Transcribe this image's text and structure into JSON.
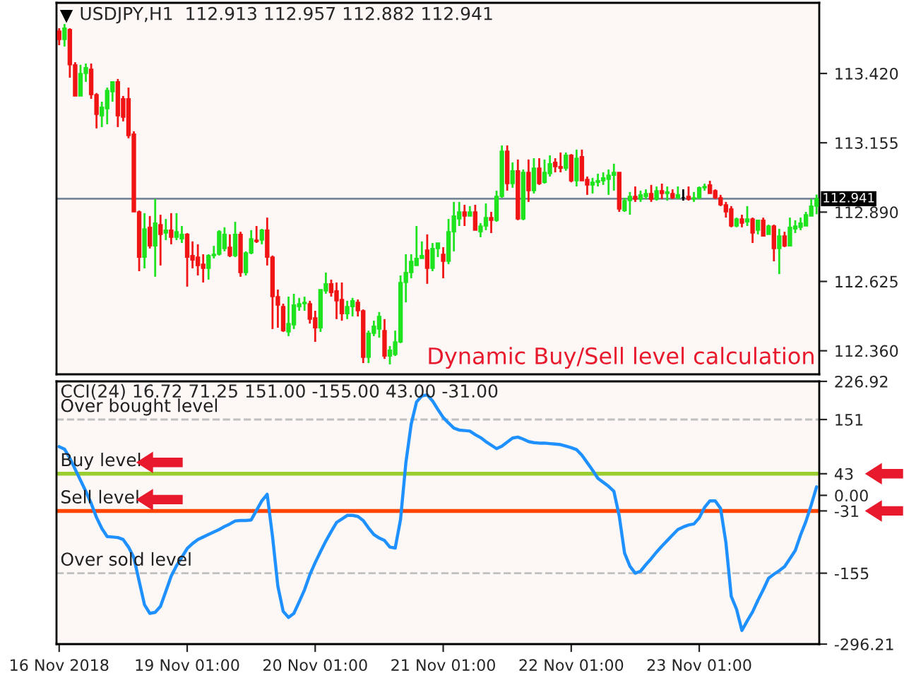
{
  "chart_data": [
    {
      "type": "candlestick",
      "title": "USDJPY,H1  112.913 112.957 112.882 112.941",
      "categories": [
        null,
        null,
        null,
        null,
        null,
        null,
        null,
        null,
        null,
        null,
        null,
        null,
        null,
        null,
        null,
        null,
        null,
        null,
        null,
        null,
        null,
        null,
        null,
        null,
        null,
        null,
        null,
        null,
        null,
        null,
        null,
        null,
        null,
        null,
        null,
        null,
        null,
        null,
        null,
        null,
        null,
        null,
        null,
        null,
        null,
        null,
        null,
        null,
        null,
        null,
        null,
        null,
        null,
        null,
        null,
        null,
        null,
        null,
        null,
        null,
        null,
        null,
        null,
        null,
        null,
        null,
        null,
        null,
        null,
        null,
        null,
        null,
        null,
        null,
        null,
        null,
        null,
        null,
        null,
        null,
        null,
        null,
        null,
        null,
        null,
        null,
        null,
        null,
        null,
        null,
        null,
        null,
        null,
        null,
        null,
        null,
        null,
        null,
        null,
        null,
        null,
        null,
        null,
        null,
        null,
        null,
        null,
        null,
        null,
        null,
        null,
        null,
        null,
        null,
        null,
        null,
        null,
        null,
        null,
        null,
        null,
        null,
        null,
        null,
        null,
        null,
        null,
        null,
        null,
        null,
        null,
        null,
        null,
        null,
        null,
        null,
        null,
        null,
        null,
        null,
        null,
        null,
        null
      ],
      "ohlc": [
        [
          113.582,
          113.593,
          113.528,
          113.55
        ],
        [
          113.55,
          113.609,
          113.523,
          113.593
        ],
        [
          113.588,
          113.593,
          113.404,
          113.453
        ],
        [
          113.453,
          113.463,
          113.334,
          113.334
        ],
        [
          113.334,
          113.453,
          113.334,
          113.42
        ],
        [
          113.42,
          113.458,
          113.388,
          113.442
        ],
        [
          113.436,
          113.458,
          113.323,
          113.339
        ],
        [
          113.339,
          113.345,
          113.21,
          113.264
        ],
        [
          113.258,
          113.312,
          113.215,
          113.291
        ],
        [
          113.285,
          113.366,
          113.226,
          113.355
        ],
        [
          113.35,
          113.388,
          113.312,
          113.388
        ],
        [
          113.388,
          113.399,
          113.215,
          113.258
        ],
        [
          113.323,
          113.334,
          113.237,
          113.253
        ],
        [
          113.323,
          113.366,
          113.172,
          113.183
        ],
        [
          113.188,
          113.199,
          112.891,
          112.891
        ],
        [
          112.891,
          112.896,
          112.664,
          112.718
        ],
        [
          112.718,
          112.886,
          112.675,
          112.826
        ],
        [
          112.832,
          112.875,
          112.751,
          112.761
        ],
        [
          112.761,
          112.94,
          112.643,
          112.848
        ],
        [
          112.842,
          112.88,
          112.686,
          112.805
        ],
        [
          112.81,
          112.864,
          112.783,
          112.821
        ],
        [
          112.821,
          112.886,
          112.767,
          112.794
        ],
        [
          112.794,
          112.886,
          112.783,
          112.815
        ],
        [
          112.788,
          112.837,
          112.772,
          112.805
        ],
        [
          112.805,
          112.81,
          112.605,
          112.718
        ],
        [
          112.724,
          112.778,
          112.675,
          112.707
        ],
        [
          112.718,
          112.767,
          112.648,
          112.686
        ],
        [
          112.691,
          112.729,
          112.621,
          112.675
        ],
        [
          112.675,
          112.729,
          112.632,
          112.724
        ],
        [
          112.724,
          112.761,
          112.713,
          112.729
        ],
        [
          112.729,
          112.821,
          112.724,
          112.815
        ],
        [
          112.751,
          112.832,
          112.74,
          112.805
        ],
        [
          112.756,
          112.805,
          112.718,
          112.724
        ],
        [
          112.724,
          112.853,
          112.718,
          112.805
        ],
        [
          112.805,
          112.815,
          112.643,
          112.659
        ],
        [
          112.659,
          112.74,
          112.648,
          112.734
        ],
        [
          112.734,
          112.821,
          112.729,
          112.788
        ],
        [
          112.783,
          112.837,
          112.772,
          112.778
        ],
        [
          112.783,
          112.826,
          112.767,
          112.821
        ],
        [
          112.821,
          112.869,
          112.686,
          112.718
        ],
        [
          112.718,
          112.724,
          112.443,
          112.567
        ],
        [
          112.567,
          112.594,
          112.448,
          112.535
        ],
        [
          112.529,
          112.54,
          112.432,
          112.437
        ],
        [
          112.432,
          112.567,
          112.416,
          112.464
        ],
        [
          112.459,
          112.578,
          112.443,
          112.535
        ],
        [
          112.529,
          112.562,
          112.513,
          112.54
        ],
        [
          112.54,
          112.567,
          112.513,
          112.545
        ],
        [
          112.54,
          112.551,
          112.464,
          112.481
        ],
        [
          112.486,
          112.513,
          112.394,
          112.448
        ],
        [
          112.448,
          112.594,
          112.432,
          112.594
        ],
        [
          112.589,
          112.659,
          112.578,
          112.616
        ],
        [
          112.616,
          112.632,
          112.567,
          112.583
        ],
        [
          112.589,
          112.621,
          112.481,
          112.551
        ],
        [
          112.556,
          112.621,
          112.475,
          112.502
        ],
        [
          112.502,
          112.551,
          112.481,
          112.529
        ],
        [
          112.529,
          112.562,
          112.491,
          112.551
        ],
        [
          112.545,
          112.556,
          112.491,
          112.513
        ],
        [
          112.513,
          112.518,
          112.313,
          112.335
        ],
        [
          112.335,
          112.437,
          112.313,
          112.427
        ],
        [
          112.427,
          112.475,
          112.416,
          112.454
        ],
        [
          112.443,
          112.508,
          112.41,
          112.491
        ],
        [
          112.437,
          112.481,
          112.329,
          112.34
        ],
        [
          112.34,
          112.378,
          112.308,
          112.362
        ],
        [
          112.346,
          112.437,
          112.34,
          112.394
        ],
        [
          112.394,
          112.648,
          112.389,
          112.621
        ],
        [
          112.621,
          112.729,
          112.545,
          112.659
        ],
        [
          112.659,
          112.729,
          112.637,
          112.702
        ],
        [
          112.686,
          112.837,
          112.686,
          112.713
        ],
        [
          112.713,
          112.778,
          112.713,
          112.724
        ],
        [
          112.745,
          112.805,
          112.616,
          112.675
        ],
        [
          112.675,
          112.772,
          112.664,
          112.751
        ],
        [
          112.751,
          112.772,
          112.718,
          112.772
        ],
        [
          112.729,
          112.756,
          112.637,
          112.702
        ],
        [
          112.702,
          112.864,
          112.691,
          112.815
        ],
        [
          112.815,
          112.929,
          112.74,
          112.875
        ],
        [
          112.864,
          112.929,
          112.837,
          112.891
        ],
        [
          112.891,
          112.918,
          112.837,
          112.875
        ],
        [
          112.875,
          112.913,
          112.875,
          112.891
        ],
        [
          112.891,
          112.918,
          112.821,
          112.821
        ],
        [
          112.815,
          112.848,
          112.794,
          112.837
        ],
        [
          112.837,
          112.923,
          112.821,
          112.869
        ],
        [
          112.869,
          112.891,
          112.81,
          112.859
        ],
        [
          112.859,
          112.972,
          112.853,
          112.95
        ],
        [
          112.95,
          113.145,
          112.945,
          113.123
        ],
        [
          113.123,
          113.145,
          112.972,
          112.999
        ],
        [
          112.999,
          113.08,
          112.983,
          113.048
        ],
        [
          113.048,
          113.091,
          112.859,
          112.864
        ],
        [
          112.864,
          113.053,
          112.859,
          113.042
        ],
        [
          113.042,
          113.091,
          112.929,
          112.972
        ],
        [
          112.972,
          113.096,
          112.961,
          113.058
        ],
        [
          113.058,
          113.096,
          112.994,
          112.999
        ],
        [
          113.004,
          113.091,
          112.999,
          113.042
        ],
        [
          113.037,
          113.107,
          113.026,
          113.075
        ],
        [
          113.08,
          113.096,
          113.042,
          113.064
        ],
        [
          113.064,
          113.118,
          113.042,
          113.058
        ],
        [
          113.058,
          113.118,
          113.048,
          113.107
        ],
        [
          113.107,
          113.112,
          113.004,
          113.01
        ],
        [
          113.01,
          113.129,
          112.988,
          113.096
        ],
        [
          113.102,
          113.129,
          113.01,
          113.01
        ],
        [
          113.015,
          113.026,
          112.956,
          112.994
        ],
        [
          112.994,
          113.021,
          112.961,
          113.004
        ],
        [
          113.004,
          113.037,
          112.988,
          113.01
        ],
        [
          113.01,
          113.042,
          112.994,
          113.021
        ],
        [
          113.015,
          113.053,
          112.956,
          113.031
        ],
        [
          113.031,
          113.075,
          112.972,
          113.042
        ],
        [
          113.042,
          113.042,
          112.891,
          112.902
        ],
        [
          112.896,
          112.945,
          112.891,
          112.934
        ],
        [
          112.934,
          112.967,
          112.88,
          112.95
        ],
        [
          112.95,
          112.988,
          112.929,
          112.94
        ],
        [
          112.94,
          112.972,
          112.929,
          112.956
        ],
        [
          112.95,
          112.977,
          112.94,
          112.961
        ],
        [
          112.961,
          112.994,
          112.929,
          112.94
        ],
        [
          112.94,
          112.988,
          112.934,
          112.972
        ],
        [
          112.972,
          112.999,
          112.94,
          112.961
        ],
        [
          112.961,
          112.988,
          112.934,
          112.967
        ],
        [
          112.961,
          112.977,
          112.94,
          112.945
        ],
        [
          112.945,
          112.988,
          112.94,
          112.956
        ],
        [
          112.945,
          112.977,
          112.934,
          112.945
        ],
        [
          112.95,
          112.988,
          112.934,
          112.94
        ],
        [
          112.94,
          112.967,
          112.929,
          112.945
        ],
        [
          112.945,
          112.988,
          112.94,
          112.983
        ],
        [
          112.983,
          112.999,
          112.972,
          112.988
        ],
        [
          112.994,
          113.01,
          112.961,
          112.961
        ],
        [
          112.972,
          112.977,
          112.94,
          112.945
        ],
        [
          112.945,
          112.956,
          112.913,
          112.918
        ],
        [
          112.918,
          112.929,
          112.869,
          112.891
        ],
        [
          112.902,
          112.913,
          112.832,
          112.837
        ],
        [
          112.837,
          112.869,
          112.832,
          112.864
        ],
        [
          112.864,
          112.88,
          112.832,
          112.848
        ],
        [
          112.853,
          112.913,
          112.837,
          112.864
        ],
        [
          112.864,
          112.869,
          112.772,
          112.81
        ],
        [
          112.821,
          112.859,
          112.805,
          112.859
        ],
        [
          112.859,
          112.869,
          112.799,
          112.799
        ],
        [
          112.805,
          112.842,
          112.805,
          112.837
        ],
        [
          112.837,
          112.842,
          112.702,
          112.751
        ],
        [
          112.751,
          112.826,
          112.653,
          112.799
        ],
        [
          112.799,
          112.815,
          112.756,
          112.761
        ],
        [
          112.761,
          112.869,
          112.761,
          112.832
        ],
        [
          112.826,
          112.859,
          112.81,
          112.837
        ],
        [
          112.832,
          112.869,
          112.821,
          112.848
        ],
        [
          112.837,
          112.891,
          112.837,
          112.88
        ],
        [
          112.875,
          112.94,
          112.875,
          112.913
        ],
        [
          112.913,
          112.957,
          112.882,
          112.941
        ]
      ],
      "colors": [
        "#f01414",
        "#1ee31e",
        "#f01414",
        "#f01414",
        "#1ee31e",
        "#1ee31e",
        "#f01414",
        "#f01414",
        "#1ee31e",
        "#1ee31e",
        "#1ee31e",
        "#f01414",
        "#f01414",
        "#f01414",
        "#f01414",
        "#f01414",
        "#1ee31e",
        "#f01414",
        "#1ee31e",
        "#f01414",
        "#1ee31e",
        "#f01414",
        "#1ee31e",
        "#1ee31e",
        "#f01414",
        "#f01414",
        "#f01414",
        "#f01414",
        "#1ee31e",
        "#1ee31e",
        "#1ee31e",
        "#1ee31e",
        "#f01414",
        "#1ee31e",
        "#f01414",
        "#1ee31e",
        "#1ee31e",
        "#f01414",
        "#1ee31e",
        "#f01414",
        "#f01414",
        "#f01414",
        "#f01414",
        "#1ee31e",
        "#1ee31e",
        "#1ee31e",
        "#1ee31e",
        "#f01414",
        "#f01414",
        "#1ee31e",
        "#1ee31e",
        "#f01414",
        "#f01414",
        "#f01414",
        "#1ee31e",
        "#1ee31e",
        "#f01414",
        "#f01414",
        "#1ee31e",
        "#1ee31e",
        "#1ee31e",
        "#f01414",
        "#1ee31e",
        "#1ee31e",
        "#1ee31e",
        "#1ee31e",
        "#1ee31e",
        "#1ee31e",
        "#1ee31e",
        "#f01414",
        "#1ee31e",
        "#1ee31e",
        "#f01414",
        "#1ee31e",
        "#1ee31e",
        "#1ee31e",
        "#f01414",
        "#1ee31e",
        "#f01414",
        "#1ee31e",
        "#1ee31e",
        "#f01414",
        "#1ee31e",
        "#1ee31e",
        "#f01414",
        "#1ee31e",
        "#f01414",
        "#1ee31e",
        "#f01414",
        "#1ee31e",
        "#f01414",
        "#1ee31e",
        "#1ee31e",
        "#f01414",
        "#f01414",
        "#1ee31e",
        "#f01414",
        "#1ee31e",
        "#f01414",
        "#f01414",
        "#1ee31e",
        "#1ee31e",
        "#1ee31e",
        "#1ee31e",
        "#1ee31e",
        "#f01414",
        "#1ee31e",
        "#1ee31e",
        "#f01414",
        "#1ee31e",
        "#1ee31e",
        "#f01414",
        "#1ee31e",
        "#f01414",
        "#1ee31e",
        "#f01414",
        "#1ee31e",
        "#000000",
        "#f01414",
        "#1ee31e",
        "#1ee31e",
        "#1ee31e",
        "#f01414",
        "#f01414",
        "#f01414",
        "#f01414",
        "#f01414",
        "#1ee31e",
        "#f01414",
        "#1ee31e",
        "#f01414",
        "#1ee31e",
        "#f01414",
        "#1ee31e",
        "#f01414",
        "#1ee31e",
        "#f01414",
        "#1ee31e",
        "#1ee31e",
        "#1ee31e",
        "#1ee31e",
        "#1ee31e",
        "#1ee31e"
      ],
      "ylim": [
        112.27,
        113.69
      ],
      "yticks": [
        {
          "value": 113.42,
          "label": "113.420"
        },
        113.155,
        {
          "value": 112.89,
          "label": "112.890"
        },
        112.625,
        {
          "value": 112.36,
          "label": "112.360"
        }
      ],
      "tick_labels": "y",
      "ref_lines": [
        {
          "axis": "y",
          "value": 112.941,
          "label": "112.941",
          "color": "#778899",
          "line_style": "solid"
        }
      ],
      "annotations": [
        "Dynamic Buy/Sell level calculation"
      ]
    },
    {
      "type": "line",
      "title": "CCI(24) 16.72 71.25 151.00 -155.00 43.00 -31.00",
      "categories": [
        "16 Nov 2018",
        null,
        null,
        null,
        null,
        null,
        null,
        null,
        null,
        null,
        null,
        null,
        null,
        null,
        null,
        null,
        null,
        null,
        null,
        null,
        null,
        null,
        null,
        null,
        "19 Nov 01:00",
        null,
        null,
        null,
        null,
        null,
        null,
        null,
        null,
        null,
        null,
        null,
        null,
        null,
        null,
        null,
        null,
        null,
        null,
        null,
        null,
        null,
        null,
        null,
        "20 Nov 01:00",
        null,
        null,
        null,
        null,
        null,
        null,
        null,
        null,
        null,
        null,
        null,
        null,
        null,
        null,
        null,
        null,
        null,
        null,
        null,
        null,
        null,
        null,
        null,
        "21 Nov 01:00",
        null,
        null,
        null,
        null,
        null,
        null,
        null,
        null,
        null,
        null,
        null,
        null,
        null,
        null,
        null,
        null,
        null,
        null,
        null,
        null,
        null,
        null,
        null,
        "22 Nov 01:00",
        null,
        null,
        null,
        null,
        null,
        null,
        null,
        null,
        null,
        null,
        null,
        null,
        null,
        null,
        null,
        null,
        null,
        null,
        null,
        null,
        null,
        null,
        null,
        "23 Nov 01:00",
        null,
        null,
        null,
        null,
        null,
        null,
        null,
        null,
        null,
        null,
        null,
        null,
        null,
        null,
        null,
        null,
        null,
        null,
        null,
        null,
        null,
        null
      ],
      "series": [
        {
          "color": "#1e90ff",
          "values": [
            97,
            92,
            74,
            52,
            30,
            8,
            -16,
            -44,
            -66,
            -82,
            -83,
            -84,
            -88,
            -103,
            -124,
            -171,
            -218,
            -235,
            -233,
            -221,
            -191,
            -161,
            -140,
            -123,
            -106,
            -96,
            -88,
            -83,
            -78,
            -73,
            -68,
            -62,
            -57,
            -51,
            -50,
            -50,
            -49,
            -30,
            -11,
            2,
            -82,
            -181,
            -231,
            -243,
            -235,
            -212,
            -188,
            -158,
            -134,
            -112,
            -91,
            -72,
            -54,
            -47,
            -40,
            -40,
            -42,
            -50,
            -65,
            -78,
            -85,
            -90,
            -103,
            -105,
            -48,
            65,
            142,
            186,
            198,
            200,
            188,
            171,
            155,
            144,
            134,
            130,
            129,
            128,
            121,
            115,
            107,
            100,
            93,
            98,
            106,
            114,
            116,
            112,
            107,
            105,
            104,
            104,
            103,
            102,
            101,
            98,
            95,
            91,
            80,
            65,
            50,
            34,
            26,
            18,
            8,
            -41,
            -115,
            -141,
            -155,
            -151,
            -138,
            -126,
            -113,
            -101,
            -90,
            -79,
            -68,
            -63,
            -59,
            -57,
            -45,
            -24,
            -11,
            -11,
            -26,
            -94,
            -201,
            -227,
            -269,
            -250,
            -232,
            -209,
            -188,
            -165,
            -157,
            -150,
            -142,
            -126,
            -110,
            -79,
            -52,
            -19,
            17
          ]
        }
      ],
      "ylim": [
        -296.21,
        226.92
      ],
      "yticks": [
        226.92,
        151,
        43,
        {
          "value": 0,
          "label": "0.00"
        },
        -31,
        -155,
        -296.21
      ],
      "ref_lines": [
        {
          "axis": "y",
          "value": 151,
          "label": "Over bought level",
          "color": "#c0c0c0",
          "line_style": "dashed"
        },
        {
          "axis": "y",
          "value": 43,
          "label": "Buy level",
          "color": "#9acd32",
          "line_style": "solid"
        },
        {
          "axis": "y",
          "value": -31,
          "label": "Sell level",
          "color": "#ff4500",
          "line_style": "solid"
        },
        {
          "axis": "y",
          "value": -155,
          "label": "Over sold level",
          "color": "#c0c0c0",
          "line_style": "dashed"
        }
      ]
    }
  ]
}
